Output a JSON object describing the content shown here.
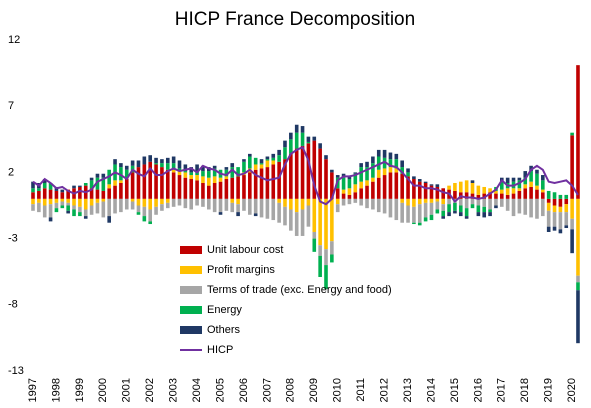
{
  "chart_data": {
    "type": "bar",
    "title": "HICP France Decomposition",
    "categories": [
      "1997",
      null,
      null,
      null,
      "1998",
      null,
      null,
      null,
      "1999",
      null,
      null,
      null,
      "2000",
      null,
      null,
      null,
      "2001",
      null,
      null,
      null,
      "2002",
      null,
      null,
      null,
      "2003",
      null,
      null,
      null,
      "2004",
      null,
      null,
      null,
      "2005",
      null,
      null,
      null,
      "2006",
      null,
      null,
      null,
      "2007",
      null,
      null,
      null,
      "2008",
      null,
      null,
      null,
      "2009",
      null,
      null,
      null,
      "2010",
      null,
      null,
      null,
      "2011",
      null,
      null,
      null,
      "2012",
      null,
      null,
      null,
      "2013",
      null,
      null,
      null,
      "2014",
      null,
      null,
      null,
      "2015",
      null,
      null,
      null,
      "2016",
      null,
      null,
      null,
      "2017",
      null,
      null,
      null,
      "2018",
      null,
      null,
      null,
      "2019",
      null,
      null,
      null,
      "2020",
      null
    ],
    "ylim": [
      -13,
      12
    ],
    "yticks": [
      -13,
      -8,
      -3,
      2,
      7,
      12
    ],
    "series": [
      {
        "name": "Unit labour cost",
        "type": "bar",
        "color": "#c00000",
        "values": [
          0.5,
          0.6,
          0.8,
          0.7,
          0.6,
          0.5,
          0.7,
          0.8,
          0.9,
          1.0,
          0.8,
          0.7,
          0.6,
          0.8,
          1.0,
          1.2,
          1.5,
          2.0,
          2.4,
          2.6,
          2.8,
          2.6,
          2.4,
          2.2,
          2.0,
          1.8,
          1.6,
          1.5,
          1.4,
          1.2,
          1.0,
          1.2,
          1.3,
          1.5,
          1.6,
          1.7,
          1.8,
          2.0,
          2.2,
          2.3,
          2.4,
          2.6,
          2.8,
          3.0,
          3.4,
          3.8,
          4.0,
          4.2,
          4.4,
          3.8,
          3.0,
          2.0,
          0.8,
          0.4,
          0.3,
          0.5,
          0.8,
          1.0,
          1.3,
          1.6,
          1.8,
          2.0,
          2.0,
          1.9,
          1.7,
          1.5,
          1.3,
          1.2,
          1.0,
          0.9,
          0.8,
          0.7,
          0.6,
          0.5,
          0.5,
          0.4,
          0.3,
          0.4,
          0.5,
          0.4,
          0.4,
          0.3,
          0.4,
          0.6,
          0.8,
          0.9,
          0.7,
          0.5,
          -0.3,
          -0.5,
          -0.6,
          -0.4,
          4.8,
          10.1
        ]
      },
      {
        "name": "Profit margins",
        "type": "bar",
        "color": "#ffc000",
        "values": [
          -0.4,
          -0.3,
          -0.5,
          -0.4,
          -0.3,
          -0.2,
          -0.3,
          -0.5,
          -0.6,
          -0.8,
          -0.5,
          -0.3,
          -0.2,
          0.3,
          0.4,
          0.2,
          0.1,
          -0.2,
          -0.5,
          -0.6,
          -0.8,
          -0.6,
          -0.4,
          -0.3,
          0.2,
          0.3,
          0.4,
          0.3,
          0.4,
          0.5,
          0.6,
          0.5,
          0.3,
          0.2,
          -0.3,
          -0.4,
          0.2,
          0.3,
          0.4,
          0.3,
          0.5,
          0.3,
          -0.3,
          -0.6,
          -0.8,
          -1.0,
          -0.8,
          -0.5,
          -2.5,
          -3.5,
          -3.8,
          -3.2,
          -0.4,
          0.3,
          0.5,
          0.6,
          0.5,
          0.4,
          0.3,
          0.6,
          0.5,
          0.4,
          0.3,
          -0.3,
          -0.5,
          -0.6,
          -0.4,
          -0.3,
          -0.3,
          -0.2,
          -0.4,
          0.3,
          0.6,
          0.8,
          0.9,
          0.8,
          0.7,
          0.5,
          0.3,
          0.2,
          0.3,
          0.5,
          0.4,
          0.2,
          0.3,
          0.4,
          0.3,
          0.2,
          -0.6,
          -0.5,
          -0.4,
          -0.6,
          -1.5,
          -5.8
        ]
      },
      {
        "name": "Terms of trade (exc. Energy and food)",
        "type": "bar",
        "color": "#a6a6a6",
        "values": [
          -0.5,
          -0.7,
          -0.9,
          -1.0,
          -0.4,
          -0.3,
          -0.2,
          -0.3,
          -0.4,
          -0.5,
          -0.7,
          -0.8,
          -1.2,
          -1.3,
          -1.1,
          -1.0,
          -0.8,
          -0.6,
          -0.5,
          -0.7,
          -0.9,
          -0.6,
          -0.5,
          -0.4,
          -0.6,
          -0.5,
          -0.7,
          -0.8,
          -0.5,
          -0.6,
          -0.8,
          -1.0,
          -1.0,
          -0.9,
          -0.7,
          -0.6,
          -0.9,
          -1.2,
          -1.1,
          -1.4,
          -1.5,
          -1.6,
          -1.5,
          -1.4,
          -1.6,
          -1.8,
          -2.0,
          -1.6,
          -0.5,
          -0.8,
          -1.2,
          -1.0,
          -0.6,
          -0.5,
          -0.4,
          -0.3,
          -0.5,
          -0.7,
          -0.8,
          -1.0,
          -1.1,
          -1.4,
          -1.6,
          -1.5,
          -1.3,
          -1.2,
          -1.4,
          -1.1,
          -0.9,
          -0.6,
          -0.5,
          -0.4,
          -0.3,
          -0.5,
          -0.7,
          -0.4,
          -0.5,
          -0.6,
          -0.8,
          -0.5,
          -0.6,
          -0.9,
          -1.3,
          -1.1,
          -1.2,
          -1.4,
          -1.5,
          -1.3,
          -1.2,
          -1.1,
          -1.3,
          -1.0,
          -0.8,
          -0.5
        ]
      },
      {
        "name": "Energy",
        "type": "bar",
        "color": "#00b050",
        "values": [
          0.3,
          0.2,
          0.4,
          0.5,
          -0.3,
          -0.2,
          -0.4,
          -0.5,
          -0.3,
          0.2,
          0.6,
          0.9,
          1.0,
          1.1,
          1.2,
          1.0,
          0.6,
          0.5,
          -0.2,
          -0.4,
          -0.2,
          0.1,
          0.3,
          0.5,
          0.5,
          0.2,
          0.1,
          0.2,
          0.3,
          0.4,
          0.5,
          0.6,
          0.6,
          0.5,
          0.8,
          0.7,
          0.8,
          0.9,
          0.5,
          0.1,
          0.1,
          0.2,
          0.5,
          0.9,
          1.1,
          1.2,
          1.0,
          0.1,
          -1.0,
          -1.6,
          -1.8,
          -0.6,
          0.8,
          0.9,
          0.7,
          0.8,
          1.1,
          1.0,
          1.1,
          1.0,
          0.8,
          0.6,
          0.7,
          0.5,
          0.3,
          -0.1,
          -0.2,
          -0.3,
          -0.4,
          -0.3,
          -0.4,
          -0.6,
          -0.6,
          -0.5,
          -0.6,
          -0.3,
          -0.5,
          -0.4,
          -0.2,
          0.3,
          0.6,
          0.4,
          0.5,
          0.6,
          0.5,
          0.8,
          0.9,
          0.7,
          0.6,
          0.5,
          0.3,
          0.3,
          0.2,
          -0.6
        ]
      },
      {
        "name": "Others",
        "type": "bar",
        "color": "#1f3864",
        "values": [
          0.5,
          0.4,
          0.3,
          -0.3,
          0.3,
          0.2,
          -0.2,
          0.2,
          0.1,
          -0.2,
          0.2,
          0.3,
          0.3,
          -0.5,
          0.4,
          0.3,
          0.3,
          0.4,
          0.5,
          0.6,
          0.5,
          0.4,
          0.3,
          0.4,
          0.5,
          0.6,
          0.5,
          0.4,
          0.5,
          0.4,
          0.3,
          0.2,
          -0.2,
          0.2,
          0.3,
          -0.3,
          0.2,
          0.2,
          -0.2,
          0.3,
          0.2,
          0.3,
          0.4,
          0.5,
          0.5,
          0.6,
          0.5,
          0.4,
          0.3,
          0.4,
          0.3,
          0.2,
          0.2,
          0.3,
          0.2,
          0.1,
          0.3,
          0.4,
          0.5,
          0.5,
          0.6,
          0.5,
          0.4,
          0.5,
          0.3,
          0.2,
          0.2,
          0.1,
          0.1,
          0.2,
          -0.2,
          -0.3,
          -0.2,
          -0.3,
          -0.2,
          0.2,
          -0.3,
          -0.4,
          -0.3,
          -0.2,
          0.3,
          0.4,
          0.3,
          0.2,
          0.5,
          0.4,
          0.3,
          0.4,
          -0.4,
          -0.3,
          -0.3,
          -0.2,
          -1.8,
          -4.0
        ]
      },
      {
        "name": "HICP",
        "type": "line",
        "color": "#7030a0",
        "values": [
          1.3,
          1.0,
          1.5,
          1.2,
          0.8,
          0.9,
          0.6,
          0.4,
          0.6,
          0.5,
          0.7,
          1.3,
          1.5,
          1.7,
          2.0,
          1.8,
          1.5,
          2.2,
          1.9,
          1.7,
          2.3,
          1.8,
          1.8,
          2.1,
          2.3,
          2.1,
          2.2,
          2.3,
          2.0,
          2.5,
          2.3,
          2.2,
          1.9,
          1.8,
          2.2,
          1.8,
          1.9,
          2.2,
          1.8,
          1.6,
          1.4,
          1.5,
          1.6,
          2.6,
          3.4,
          3.7,
          3.9,
          2.9,
          1.0,
          -0.2,
          -0.4,
          0.0,
          1.4,
          1.7,
          1.7,
          1.8,
          2.0,
          2.2,
          2.4,
          2.6,
          2.8,
          2.5,
          2.4,
          2.0,
          1.5,
          1.0,
          1.0,
          0.8,
          0.8,
          0.7,
          0.5,
          0.4,
          -0.2,
          0.2,
          0.1,
          0.1,
          0.0,
          0.1,
          0.4,
          0.7,
          1.4,
          1.0,
          1.0,
          1.2,
          1.5,
          2.2,
          2.5,
          2.2,
          1.3,
          1.2,
          1.3,
          1.4,
          1.0,
          0.3
        ]
      }
    ]
  }
}
